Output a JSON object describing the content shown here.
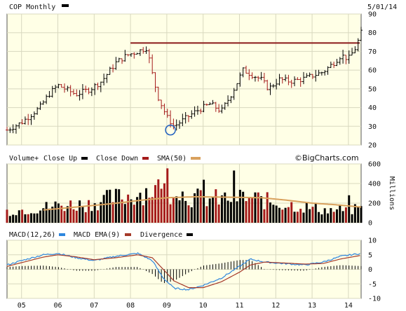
{
  "header": {
    "title": "COP Monthly",
    "date": "5/01/14",
    "brand": "©BigCharts.com"
  },
  "colors": {
    "panel_bg": "#ffffe6",
    "grid": "#d8d8bf",
    "frame": "#555555",
    "bar": "#000000",
    "close_up": "#000000",
    "close_down": "#a51b1b",
    "sma": "#d9a15d",
    "resistance": "#8b1a1a",
    "circle": "#1f5fbf",
    "macd": "#2e86de",
    "macd_ema": "#a53a2a",
    "divergence": "#000000"
  },
  "legends": {
    "volume": [
      {
        "label": "Volume+",
        "swatch": null
      },
      {
        "label": "Close Up",
        "swatch": "#000000"
      },
      {
        "label": "Close Down",
        "swatch": "#a51b1b"
      },
      {
        "label": "SMA(50)",
        "swatch": "#d9a15d"
      }
    ],
    "macd": [
      {
        "label": "MACD(12,26)",
        "swatch": null
      },
      {
        "label": "MACD",
        "swatch": "#2e86de"
      },
      {
        "label": "MACD EMA(9)",
        "swatch": "#a53a2a"
      },
      {
        "label": "Divergence",
        "swatch": "#000000"
      }
    ]
  },
  "chart_data": [
    {
      "type": "candlestick",
      "ylim": [
        20,
        90
      ],
      "yticks": [
        20,
        30,
        40,
        50,
        60,
        70,
        80,
        90
      ],
      "xlim": [
        2004.6,
        2014.35
      ],
      "x_tick_positions": [
        2005,
        2006,
        2007,
        2008,
        2009,
        2010,
        2011,
        2012,
        2013,
        2014
      ],
      "x_tick_labels": [
        "05",
        "06",
        "07",
        "08",
        "09",
        "10",
        "11",
        "12",
        "13",
        "14"
      ],
      "resistance": {
        "value": 74.5,
        "x_start": 2008.0
      },
      "circled_low": {
        "x": 2009.1,
        "y": 28
      },
      "anchors": [
        [
          2004.6,
          28
        ],
        [
          2005.0,
          32
        ],
        [
          2005.5,
          40
        ],
        [
          2005.75,
          47
        ],
        [
          2006.0,
          52
        ],
        [
          2006.5,
          47
        ],
        [
          2006.9,
          50
        ],
        [
          2007.2,
          54
        ],
        [
          2007.6,
          64
        ],
        [
          2007.9,
          68
        ],
        [
          2008.2,
          70
        ],
        [
          2008.45,
          72
        ],
        [
          2008.6,
          58
        ],
        [
          2008.75,
          46
        ],
        [
          2009.0,
          35
        ],
        [
          2009.2,
          30
        ],
        [
          2009.5,
          34
        ],
        [
          2009.8,
          38
        ],
        [
          2010.2,
          42
        ],
        [
          2010.5,
          38
        ],
        [
          2010.8,
          48
        ],
        [
          2011.1,
          60
        ],
        [
          2011.3,
          58
        ],
        [
          2011.6,
          55
        ],
        [
          2011.8,
          50
        ],
        [
          2012.1,
          55
        ],
        [
          2012.4,
          54
        ],
        [
          2012.7,
          55
        ],
        [
          2013.0,
          57
        ],
        [
          2013.3,
          59
        ],
        [
          2013.6,
          64
        ],
        [
          2013.8,
          68
        ],
        [
          2014.0,
          66
        ],
        [
          2014.2,
          72
        ],
        [
          2014.35,
          80
        ]
      ]
    },
    {
      "type": "bar",
      "unit_label": "Millions",
      "ylim": [
        0,
        600
      ],
      "yticks": [
        0,
        200,
        400,
        600
      ],
      "xlim": [
        2004.6,
        2014.35
      ],
      "sma_label": "SMA(50)",
      "volume_anchors": [
        [
          2004.6,
          110
        ],
        [
          2005.5,
          140
        ],
        [
          2006.0,
          170
        ],
        [
          2006.8,
          180
        ],
        [
          2007.5,
          240
        ],
        [
          2008.0,
          260
        ],
        [
          2008.7,
          330
        ],
        [
          2009.2,
          300
        ],
        [
          2009.8,
          240
        ],
        [
          2010.5,
          230
        ],
        [
          2011.0,
          250
        ],
        [
          2011.5,
          230
        ],
        [
          2012.0,
          190
        ],
        [
          2012.5,
          170
        ],
        [
          2013.0,
          140
        ],
        [
          2013.5,
          120
        ],
        [
          2014.35,
          130
        ]
      ],
      "sma_anchors": [
        [
          2005.6,
          130
        ],
        [
          2006.5,
          160
        ],
        [
          2007.5,
          195
        ],
        [
          2008.3,
          230
        ],
        [
          2009.0,
          255
        ],
        [
          2009.8,
          265
        ],
        [
          2010.8,
          260
        ],
        [
          2011.6,
          255
        ],
        [
          2012.3,
          230
        ],
        [
          2013.0,
          200
        ],
        [
          2013.6,
          185
        ],
        [
          2014.35,
          160
        ]
      ]
    },
    {
      "type": "line",
      "ylim": [
        -10,
        10
      ],
      "yticks": [
        -10,
        -5,
        0,
        5,
        10
      ],
      "xlim": [
        2004.6,
        2014.35
      ],
      "series": [
        {
          "name": "MACD",
          "anchors": [
            [
              2004.6,
              1.5
            ],
            [
              2005.0,
              3
            ],
            [
              2005.6,
              5
            ],
            [
              2006.0,
              5.5
            ],
            [
              2006.5,
              4
            ],
            [
              2007.0,
              3
            ],
            [
              2007.6,
              4.5
            ],
            [
              2008.2,
              5.5
            ],
            [
              2008.6,
              3
            ],
            [
              2008.9,
              -3
            ],
            [
              2009.2,
              -6.5
            ],
            [
              2009.6,
              -7
            ],
            [
              2010.0,
              -5.5
            ],
            [
              2010.5,
              -3
            ],
            [
              2011.0,
              1
            ],
            [
              2011.3,
              3.5
            ],
            [
              2011.7,
              2.5
            ],
            [
              2012.2,
              2
            ],
            [
              2012.8,
              1.5
            ],
            [
              2013.3,
              2.5
            ],
            [
              2013.8,
              4.5
            ],
            [
              2014.35,
              5.5
            ]
          ]
        },
        {
          "name": "MACD EMA(9)",
          "anchors": [
            [
              2004.6,
              1
            ],
            [
              2005.0,
              2.3
            ],
            [
              2005.6,
              4.2
            ],
            [
              2006.0,
              5
            ],
            [
              2006.5,
              4.3
            ],
            [
              2007.0,
              3.3
            ],
            [
              2007.6,
              4
            ],
            [
              2008.2,
              5
            ],
            [
              2008.6,
              4
            ],
            [
              2008.9,
              0
            ],
            [
              2009.2,
              -4
            ],
            [
              2009.6,
              -6.3
            ],
            [
              2010.0,
              -6.3
            ],
            [
              2010.5,
              -4.3
            ],
            [
              2011.0,
              -1
            ],
            [
              2011.3,
              1.5
            ],
            [
              2011.7,
              2.5
            ],
            [
              2012.2,
              2.2
            ],
            [
              2012.8,
              1.8
            ],
            [
              2013.3,
              2
            ],
            [
              2013.8,
              3.6
            ],
            [
              2014.35,
              4.8
            ]
          ]
        }
      ]
    }
  ]
}
